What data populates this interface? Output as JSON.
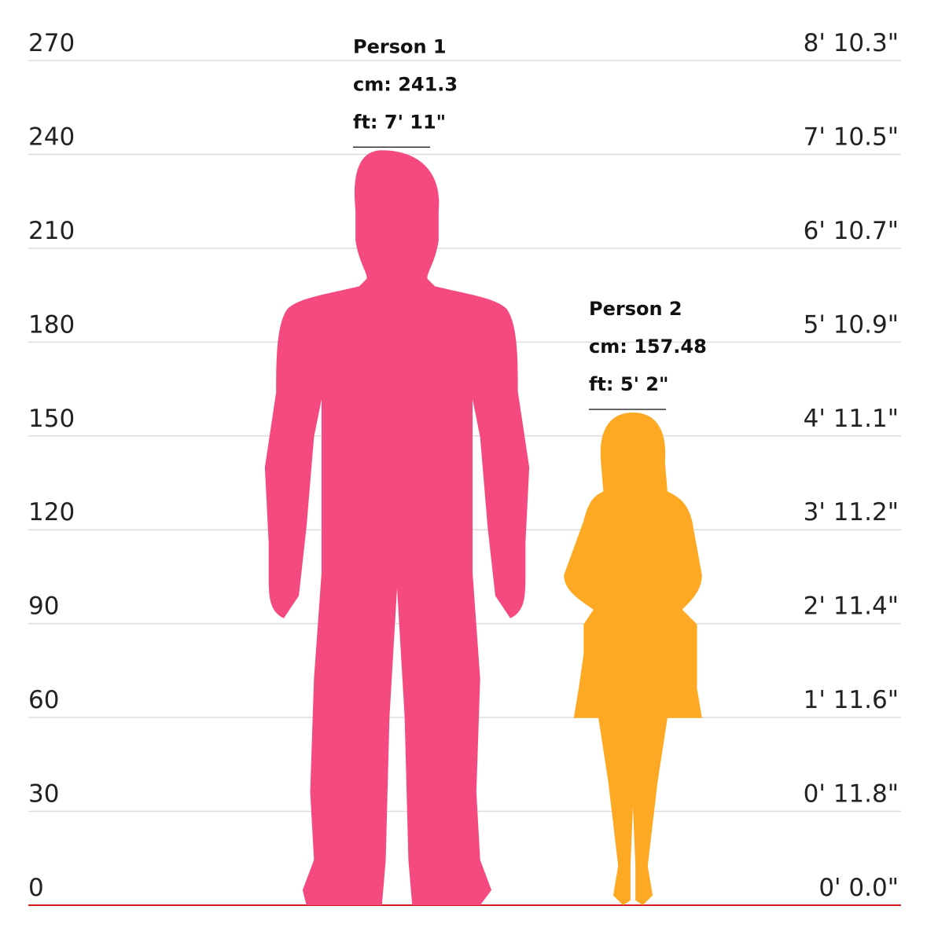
{
  "chart_data": {
    "type": "height",
    "series": [
      {
        "name": "Person 1",
        "color": "#f54a80",
        "values": [
          241.3
        ],
        "value_labels": [
          "cm: 241.3"
        ],
        "feet_labels": [
          "ft: 7' 11\""
        ]
      },
      {
        "name": "Person 2",
        "color": "#fda924",
        "values": [
          157.48
        ],
        "value_labels": [
          "cm: 157.48"
        ],
        "feet_labels": [
          "ft: 5' 2\""
        ]
      }
    ],
    "ylim": [
      0,
      270
    ],
    "yticks": [
      0,
      30,
      60,
      90,
      120,
      150,
      180,
      210,
      240,
      270
    ],
    "y2lim": [
      0,
      270
    ],
    "y2ticks": [
      {
        "value": 0,
        "label": "0' 0.0\""
      },
      {
        "value": 30,
        "label": "0' 11.8\""
      },
      {
        "value": 60,
        "label": "1' 11.6\""
      },
      {
        "value": 90,
        "label": "2' 11.4\""
      },
      {
        "value": 120,
        "label": "3' 11.2\""
      },
      {
        "value": 150,
        "label": "4' 11.1\""
      },
      {
        "value": 180,
        "label": "5' 10.9\""
      },
      {
        "value": 210,
        "label": "6' 10.7\""
      },
      {
        "value": 240,
        "label": "7' 10.5\""
      },
      {
        "value": 270,
        "label": "8' 10.3\""
      }
    ],
    "grid": true
  }
}
